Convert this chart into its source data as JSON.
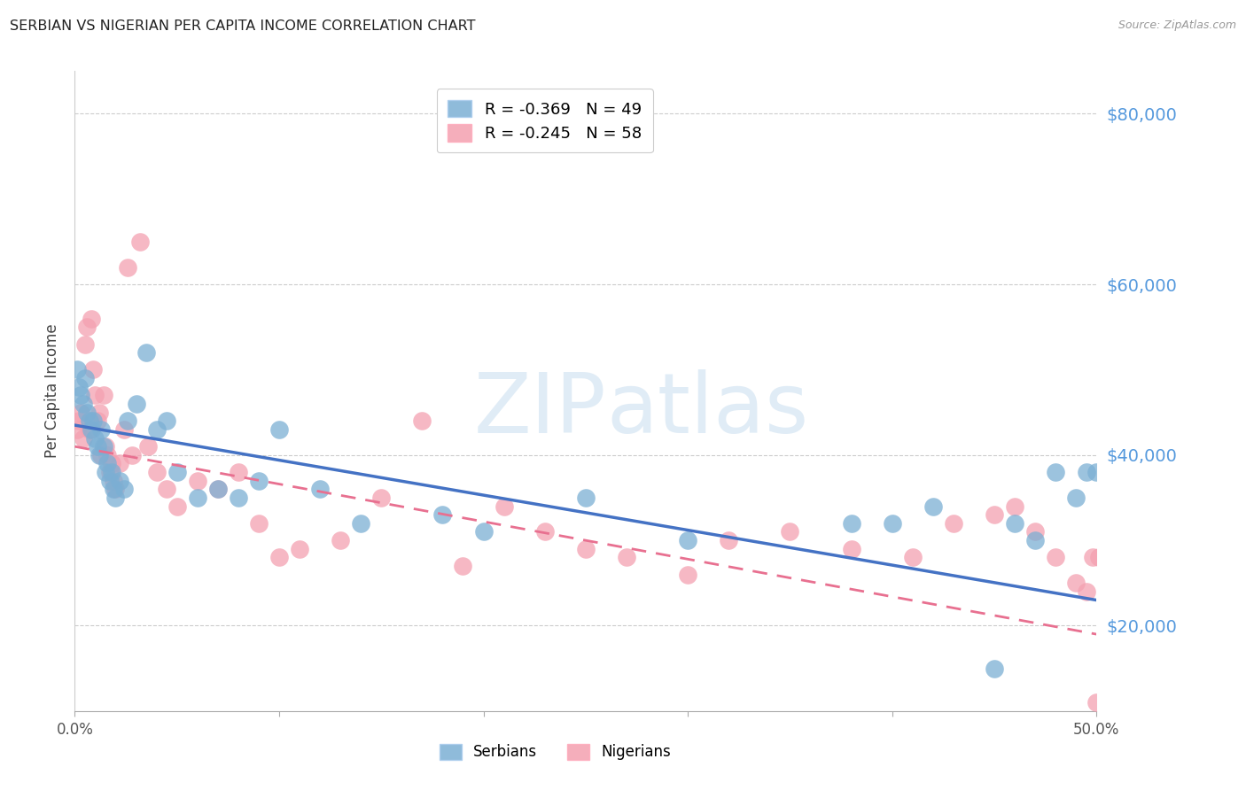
{
  "title": "SERBIAN VS NIGERIAN PER CAPITA INCOME CORRELATION CHART",
  "source": "Source: ZipAtlas.com",
  "ylabel": "Per Capita Income",
  "watermark_zip": "ZIP",
  "watermark_atlas": "atlas",
  "xlim": [
    0.0,
    0.5
  ],
  "ylim": [
    10000,
    85000
  ],
  "yticks": [
    20000,
    40000,
    60000,
    80000
  ],
  "xticks": [
    0.0,
    0.1,
    0.2,
    0.3,
    0.4,
    0.5
  ],
  "xticklabels": [
    "0.0%",
    "",
    "",
    "",
    "",
    "50.0%"
  ],
  "yticklabels": [
    "$20,000",
    "$40,000",
    "$60,000",
    "$80,000"
  ],
  "serbian_color": "#7BAFD4",
  "nigerian_color": "#F4A0B0",
  "serbian_line_color": "#4472C4",
  "nigerian_line_color": "#E87090",
  "legend_label_serbian": "R = -0.369   N = 49",
  "legend_label_nigerian": "R = -0.245   N = 58",
  "legend_bottom_serbian": "Serbians",
  "legend_bottom_nigerian": "Nigerians",
  "serbian_trend_x0": 0.0,
  "serbian_trend_y0": 43500,
  "serbian_trend_x1": 0.5,
  "serbian_trend_y1": 23000,
  "nigerian_trend_x0": 0.0,
  "nigerian_trend_y0": 41000,
  "nigerian_trend_x1": 0.5,
  "nigerian_trend_y1": 19000,
  "serbian_x": [
    0.001,
    0.002,
    0.003,
    0.004,
    0.005,
    0.006,
    0.007,
    0.008,
    0.009,
    0.01,
    0.011,
    0.012,
    0.013,
    0.014,
    0.015,
    0.016,
    0.017,
    0.018,
    0.019,
    0.02,
    0.022,
    0.024,
    0.026,
    0.03,
    0.035,
    0.04,
    0.045,
    0.05,
    0.06,
    0.07,
    0.08,
    0.09,
    0.1,
    0.12,
    0.14,
    0.18,
    0.2,
    0.25,
    0.3,
    0.38,
    0.4,
    0.42,
    0.45,
    0.46,
    0.47,
    0.48,
    0.49,
    0.495,
    0.5
  ],
  "serbian_y": [
    50000,
    48000,
    47000,
    46000,
    49000,
    45000,
    44000,
    43000,
    44000,
    42000,
    41000,
    40000,
    43000,
    41000,
    38000,
    39000,
    37000,
    38000,
    36000,
    35000,
    37000,
    36000,
    44000,
    46000,
    52000,
    43000,
    44000,
    38000,
    35000,
    36000,
    35000,
    37000,
    43000,
    36000,
    32000,
    33000,
    31000,
    35000,
    30000,
    32000,
    32000,
    34000,
    15000,
    32000,
    30000,
    38000,
    35000,
    38000,
    38000
  ],
  "nigerian_x": [
    0.001,
    0.002,
    0.003,
    0.004,
    0.005,
    0.006,
    0.007,
    0.008,
    0.009,
    0.01,
    0.011,
    0.012,
    0.013,
    0.014,
    0.015,
    0.016,
    0.017,
    0.018,
    0.019,
    0.02,
    0.022,
    0.024,
    0.026,
    0.028,
    0.032,
    0.036,
    0.04,
    0.045,
    0.05,
    0.06,
    0.07,
    0.08,
    0.09,
    0.1,
    0.11,
    0.13,
    0.15,
    0.17,
    0.19,
    0.21,
    0.23,
    0.25,
    0.27,
    0.3,
    0.32,
    0.35,
    0.38,
    0.41,
    0.43,
    0.45,
    0.46,
    0.47,
    0.48,
    0.49,
    0.495,
    0.498,
    0.5,
    0.501
  ],
  "nigerian_y": [
    43000,
    44000,
    45000,
    42000,
    53000,
    55000,
    43000,
    56000,
    50000,
    47000,
    44000,
    45000,
    40000,
    47000,
    41000,
    40000,
    38000,
    39000,
    37000,
    36000,
    39000,
    43000,
    62000,
    40000,
    65000,
    41000,
    38000,
    36000,
    34000,
    37000,
    36000,
    38000,
    32000,
    28000,
    29000,
    30000,
    35000,
    44000,
    27000,
    34000,
    31000,
    29000,
    28000,
    26000,
    30000,
    31000,
    29000,
    28000,
    32000,
    33000,
    34000,
    31000,
    28000,
    25000,
    24000,
    28000,
    11000,
    28000
  ]
}
